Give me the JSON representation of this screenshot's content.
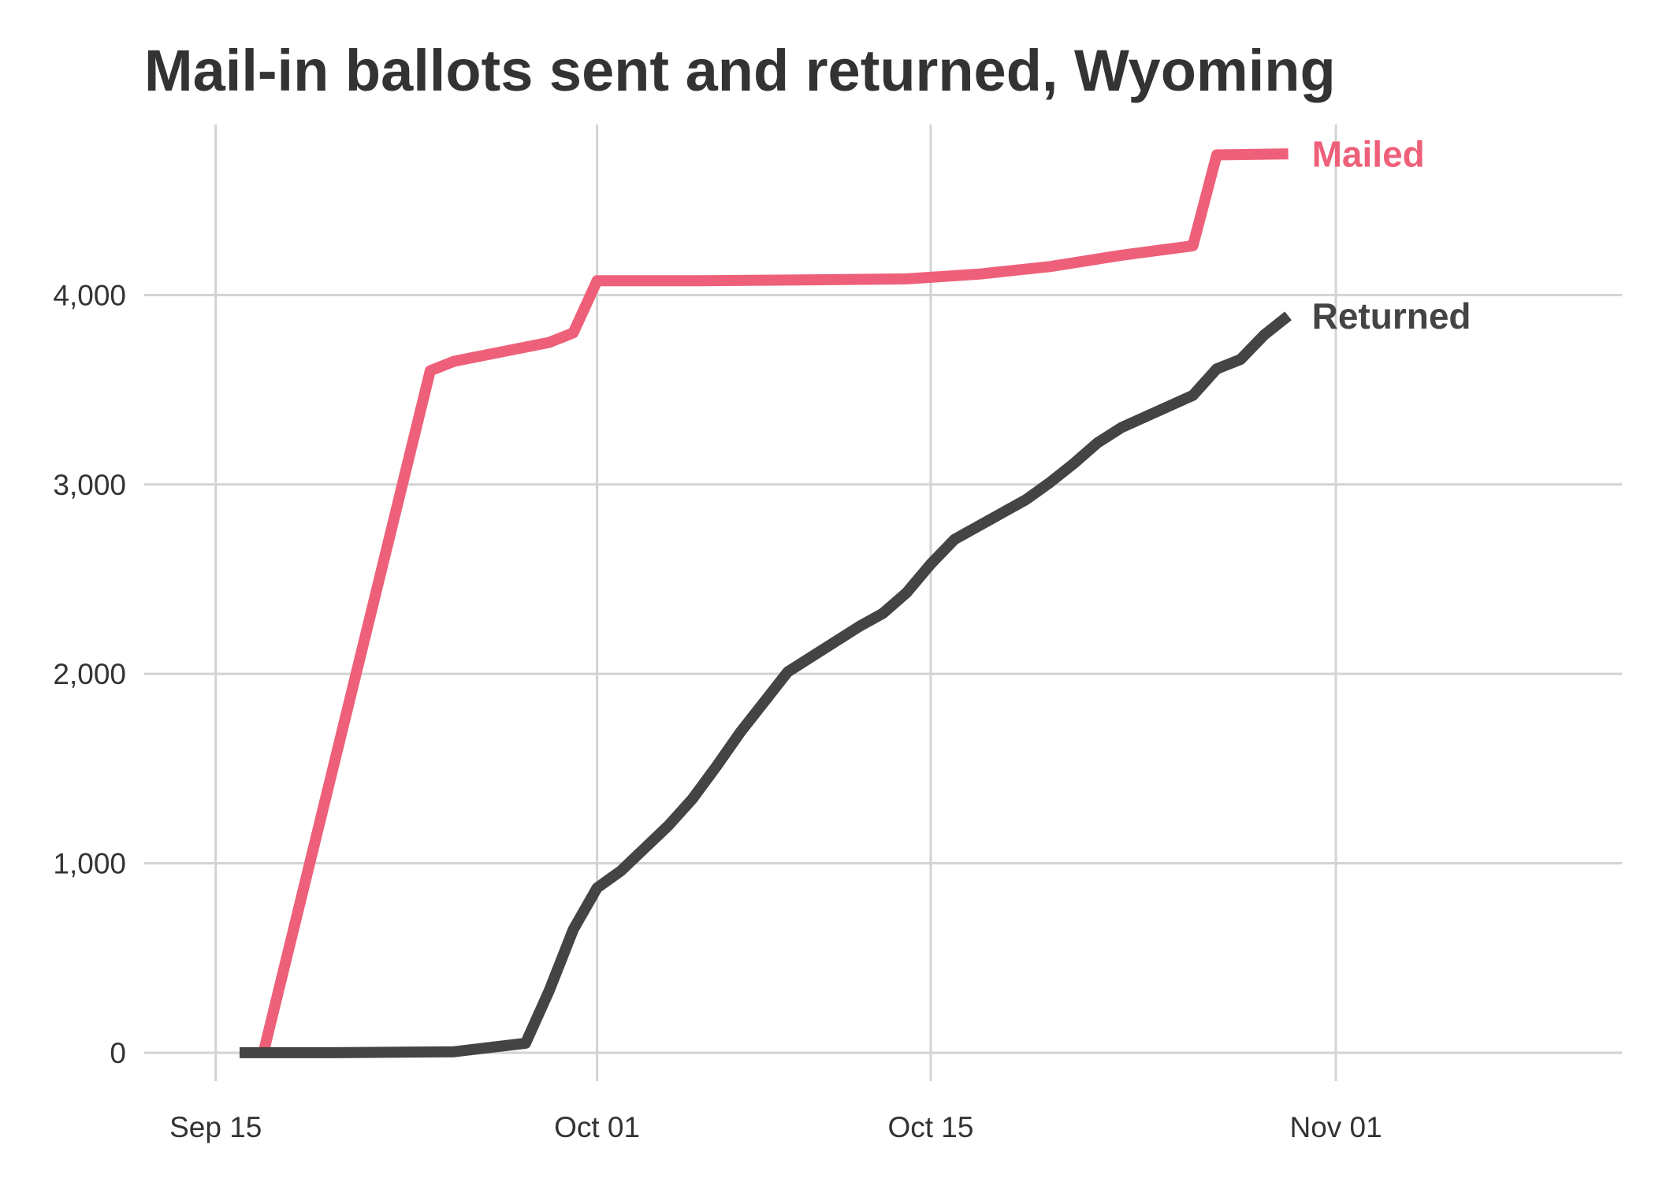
{
  "chart_data": {
    "type": "line",
    "title": "Mail-in ballots sent and returned, Wyoming",
    "xlabel": "",
    "ylabel": "",
    "xlim": [
      "2020-09-12",
      "2020-11-13"
    ],
    "ylim": [
      -150,
      4900
    ],
    "x_ticks": [
      {
        "date": "2020-09-15",
        "label": "Sep 15"
      },
      {
        "date": "2020-10-01",
        "label": "Oct 01"
      },
      {
        "date": "2020-10-15",
        "label": "Oct 15"
      },
      {
        "date": "2020-11-01",
        "label": "Nov 01"
      }
    ],
    "y_ticks": [
      {
        "value": 0,
        "label": "0"
      },
      {
        "value": 1000,
        "label": "1,000"
      },
      {
        "value": 2000,
        "label": "2,000"
      },
      {
        "value": 3000,
        "label": "3,000"
      },
      {
        "value": 4000,
        "label": "4,000"
      }
    ],
    "grid": true,
    "legend": "direct labels at line ends",
    "series": [
      {
        "name": "Mailed",
        "color": "#ee6079",
        "points": [
          [
            "2020-09-17",
            0
          ],
          [
            "2020-09-24",
            3600
          ],
          [
            "2020-09-25",
            3650
          ],
          [
            "2020-09-27",
            3700
          ],
          [
            "2020-09-29",
            3750
          ],
          [
            "2020-09-30",
            3800
          ],
          [
            "2020-10-01",
            4075
          ],
          [
            "2020-10-05",
            4075
          ],
          [
            "2020-10-10",
            4080
          ],
          [
            "2020-10-14",
            4085
          ],
          [
            "2020-10-17",
            4110
          ],
          [
            "2020-10-20",
            4150
          ],
          [
            "2020-10-23",
            4210
          ],
          [
            "2020-10-26",
            4260
          ],
          [
            "2020-10-27",
            4740
          ],
          [
            "2020-10-30",
            4745
          ]
        ]
      },
      {
        "name": "Returned",
        "color": "#444444",
        "points": [
          [
            "2020-09-16",
            0
          ],
          [
            "2020-09-20",
            0
          ],
          [
            "2020-09-25",
            5
          ],
          [
            "2020-09-28",
            50
          ],
          [
            "2020-09-29",
            330
          ],
          [
            "2020-09-30",
            650
          ],
          [
            "2020-10-01",
            870
          ],
          [
            "2020-10-02",
            960
          ],
          [
            "2020-10-03",
            1080
          ],
          [
            "2020-10-04",
            1200
          ],
          [
            "2020-10-05",
            1340
          ],
          [
            "2020-10-06",
            1510
          ],
          [
            "2020-10-07",
            1690
          ],
          [
            "2020-10-08",
            1850
          ],
          [
            "2020-10-09",
            2010
          ],
          [
            "2020-10-12",
            2250
          ],
          [
            "2020-10-13",
            2320
          ],
          [
            "2020-10-14",
            2430
          ],
          [
            "2020-10-15",
            2580
          ],
          [
            "2020-10-16",
            2710
          ],
          [
            "2020-10-19",
            2920
          ],
          [
            "2020-10-20",
            3010
          ],
          [
            "2020-10-21",
            3110
          ],
          [
            "2020-10-22",
            3220
          ],
          [
            "2020-10-23",
            3300
          ],
          [
            "2020-10-26",
            3470
          ],
          [
            "2020-10-27",
            3610
          ],
          [
            "2020-10-28",
            3660
          ],
          [
            "2020-10-29",
            3790
          ],
          [
            "2020-10-30",
            3890
          ]
        ]
      }
    ]
  }
}
